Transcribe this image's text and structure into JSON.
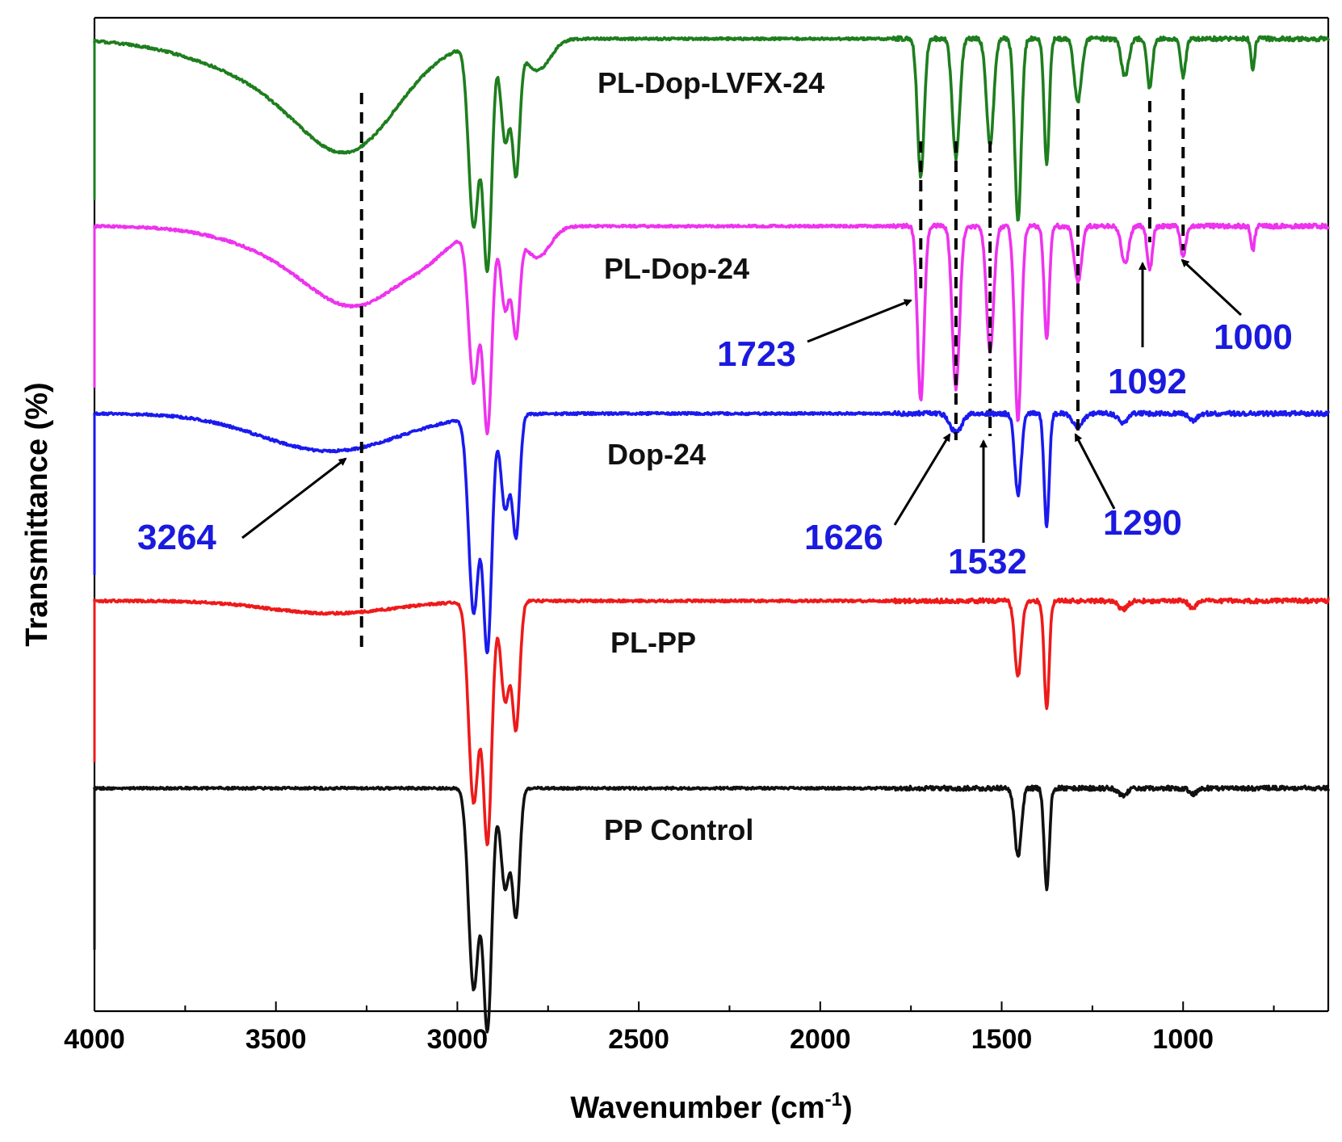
{
  "chart_data": {
    "type": "line",
    "title": "",
    "xlabel": "Wavenumber (cm",
    "xlabel_sup": "-1",
    "xlabel_close": ")",
    "ylabel": "Transmittance (%)",
    "xlim": [
      4000,
      600
    ],
    "x_reversed": true,
    "xticks": [
      4000,
      3500,
      3000,
      2500,
      2000,
      1500,
      1000
    ],
    "y_ticks_shown": false,
    "baseline_unit": "stack offset",
    "series": [
      {
        "name": "PL-Dop-LVFX-24",
        "color": "#1e7e1e",
        "stack_level": 4.0,
        "bands": [
          {
            "center": 3290,
            "width": 130,
            "depth": 0.6
          },
          {
            "center": 3400,
            "width": 200,
            "depth": 0.28
          },
          {
            "center": 3560,
            "width": 220,
            "depth": 0.12
          },
          {
            "center": 2955,
            "width": 14,
            "depth": 1.45
          },
          {
            "center": 2917,
            "width": 12,
            "depth": 1.8
          },
          {
            "center": 2868,
            "width": 12,
            "depth": 0.8
          },
          {
            "center": 2838,
            "width": 10,
            "depth": 1.0
          },
          {
            "center": 2780,
            "width": 35,
            "depth": 0.25
          },
          {
            "center": 1723,
            "width": 9,
            "depth": 1.1
          },
          {
            "center": 1626,
            "width": 10,
            "depth": 0.95
          },
          {
            "center": 1532,
            "width": 10,
            "depth": 0.85
          },
          {
            "center": 1455,
            "width": 9,
            "depth": 1.45
          },
          {
            "center": 1376,
            "width": 7,
            "depth": 1.0
          },
          {
            "center": 1290,
            "width": 10,
            "depth": 0.5
          },
          {
            "center": 1160,
            "width": 10,
            "depth": 0.3
          },
          {
            "center": 1092,
            "width": 7,
            "depth": 0.4
          },
          {
            "center": 1000,
            "width": 7,
            "depth": 0.3
          },
          {
            "center": 808,
            "width": 5,
            "depth": 0.25
          }
        ]
      },
      {
        "name": "PL-Dop-24",
        "color": "#ee33ee",
        "stack_level": 3.0,
        "bands": [
          {
            "center": 3264,
            "width": 130,
            "depth": 0.48
          },
          {
            "center": 3420,
            "width": 180,
            "depth": 0.22
          },
          {
            "center": 3080,
            "width": 60,
            "depth": 0.1
          },
          {
            "center": 2955,
            "width": 14,
            "depth": 1.2
          },
          {
            "center": 2917,
            "width": 12,
            "depth": 1.6
          },
          {
            "center": 2868,
            "width": 12,
            "depth": 0.65
          },
          {
            "center": 2838,
            "width": 10,
            "depth": 0.8
          },
          {
            "center": 2780,
            "width": 35,
            "depth": 0.25
          },
          {
            "center": 1723,
            "width": 9,
            "depth": 1.4
          },
          {
            "center": 1626,
            "width": 10,
            "depth": 1.3
          },
          {
            "center": 1532,
            "width": 10,
            "depth": 1.0
          },
          {
            "center": 1455,
            "width": 9,
            "depth": 1.55
          },
          {
            "center": 1376,
            "width": 7,
            "depth": 0.9
          },
          {
            "center": 1290,
            "width": 10,
            "depth": 0.45
          },
          {
            "center": 1160,
            "width": 10,
            "depth": 0.3
          },
          {
            "center": 1092,
            "width": 7,
            "depth": 0.35
          },
          {
            "center": 1000,
            "width": 7,
            "depth": 0.25
          },
          {
            "center": 808,
            "width": 5,
            "depth": 0.2
          }
        ]
      },
      {
        "name": "Dop-24",
        "color": "#1a1aee",
        "stack_level": 2.0,
        "bands": [
          {
            "center": 3350,
            "width": 190,
            "depth": 0.3
          },
          {
            "center": 2955,
            "width": 14,
            "depth": 1.55
          },
          {
            "center": 2917,
            "width": 12,
            "depth": 1.85
          },
          {
            "center": 2868,
            "width": 12,
            "depth": 0.75
          },
          {
            "center": 2838,
            "width": 10,
            "depth": 0.95
          },
          {
            "center": 1626,
            "width": 16,
            "depth": 0.15
          },
          {
            "center": 1455,
            "width": 9,
            "depth": 0.65
          },
          {
            "center": 1376,
            "width": 7,
            "depth": 0.9
          },
          {
            "center": 1290,
            "width": 14,
            "depth": 0.1
          },
          {
            "center": 1166,
            "width": 12,
            "depth": 0.08
          },
          {
            "center": 973,
            "width": 10,
            "depth": 0.06
          }
        ]
      },
      {
        "name": "PL-PP",
        "color": "#ee1a1a",
        "stack_level": 1.0,
        "bands": [
          {
            "center": 3350,
            "width": 170,
            "depth": 0.1
          },
          {
            "center": 2955,
            "width": 14,
            "depth": 1.6
          },
          {
            "center": 2917,
            "width": 12,
            "depth": 1.9
          },
          {
            "center": 2868,
            "width": 12,
            "depth": 0.8
          },
          {
            "center": 2838,
            "width": 10,
            "depth": 1.0
          },
          {
            "center": 1455,
            "width": 9,
            "depth": 0.6
          },
          {
            "center": 1376,
            "width": 7,
            "depth": 0.85
          },
          {
            "center": 1166,
            "width": 12,
            "depth": 0.07
          },
          {
            "center": 973,
            "width": 10,
            "depth": 0.06
          }
        ]
      },
      {
        "name": "PP Control",
        "color": "#111111",
        "stack_level": 0.0,
        "bands": [
          {
            "center": 2955,
            "width": 14,
            "depth": 1.6
          },
          {
            "center": 2917,
            "width": 12,
            "depth": 1.9
          },
          {
            "center": 2868,
            "width": 12,
            "depth": 0.8
          },
          {
            "center": 2838,
            "width": 10,
            "depth": 1.0
          },
          {
            "center": 1455,
            "width": 9,
            "depth": 0.55
          },
          {
            "center": 1376,
            "width": 7,
            "depth": 0.8
          },
          {
            "center": 1166,
            "width": 12,
            "depth": 0.06
          },
          {
            "center": 973,
            "width": 10,
            "depth": 0.05
          }
        ]
      }
    ],
    "annotations": [
      {
        "label": "3264",
        "wavenumber": 3264
      },
      {
        "label": "1723",
        "wavenumber": 1723
      },
      {
        "label": "1626",
        "wavenumber": 1626
      },
      {
        "label": "1532",
        "wavenumber": 1532
      },
      {
        "label": "1290",
        "wavenumber": 1290
      },
      {
        "label": "1092",
        "wavenumber": 1092
      },
      {
        "label": "1000",
        "wavenumber": 1000
      }
    ],
    "guide_lines": [
      {
        "wavenumber": 3264,
        "style": "dashed"
      },
      {
        "wavenumber": 1723,
        "style": "dashed"
      },
      {
        "wavenumber": 1626,
        "style": "dashed"
      },
      {
        "wavenumber": 1532,
        "style": "dash-dot"
      },
      {
        "wavenumber": 1290,
        "style": "dashed"
      },
      {
        "wavenumber": 1092,
        "style": "dashed"
      },
      {
        "wavenumber": 1000,
        "style": "dashed"
      }
    ],
    "annotation_color": "#1a1adf"
  }
}
